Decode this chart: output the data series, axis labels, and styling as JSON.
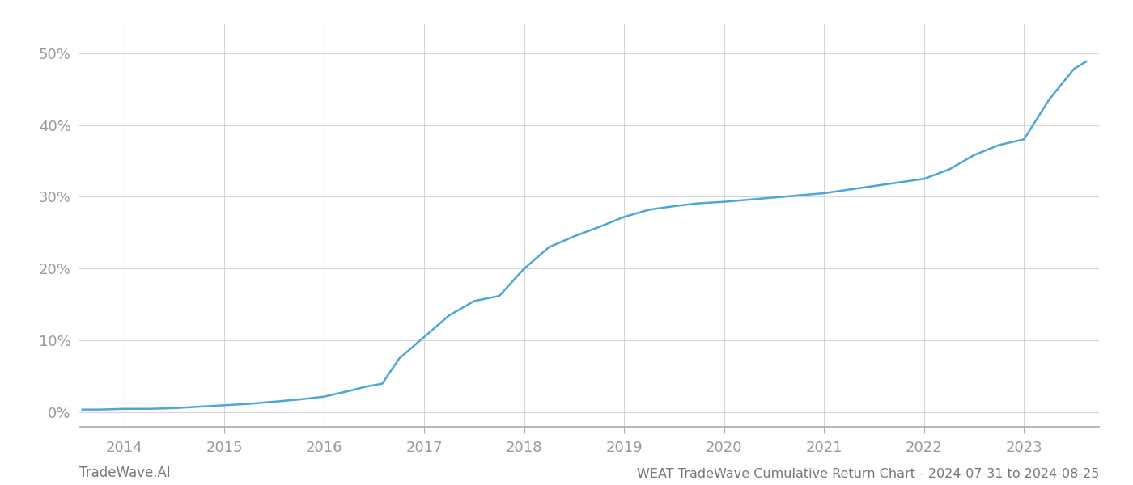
{
  "title": "WEAT TradeWave Cumulative Return Chart - 2024-07-31 to 2024-08-25",
  "watermark": "TradeWave.AI",
  "line_color": "#4da6d8",
  "background_color": "#ffffff",
  "grid_color": "#cccccc",
  "x_years": [
    2014,
    2015,
    2016,
    2017,
    2018,
    2019,
    2020,
    2021,
    2022,
    2023
  ],
  "y_ticks": [
    0,
    10,
    20,
    30,
    40,
    50
  ],
  "xlim": [
    2013.55,
    2023.75
  ],
  "ylim": [
    -2,
    54
  ],
  "data_x": [
    2013.58,
    2013.75,
    2014.0,
    2014.25,
    2014.5,
    2014.75,
    2015.0,
    2015.25,
    2015.5,
    2015.75,
    2016.0,
    2016.25,
    2016.42,
    2016.58,
    2016.75,
    2017.0,
    2017.25,
    2017.5,
    2017.75,
    2018.0,
    2018.25,
    2018.5,
    2018.75,
    2019.0,
    2019.25,
    2019.5,
    2019.75,
    2020.0,
    2020.25,
    2020.5,
    2020.75,
    2021.0,
    2021.25,
    2021.5,
    2021.75,
    2022.0,
    2022.25,
    2022.5,
    2022.75,
    2023.0,
    2023.25,
    2023.5,
    2023.62
  ],
  "data_y": [
    0.4,
    0.4,
    0.5,
    0.5,
    0.6,
    0.8,
    1.0,
    1.2,
    1.5,
    1.8,
    2.2,
    3.0,
    3.6,
    4.0,
    7.5,
    10.5,
    13.5,
    15.5,
    16.2,
    20.0,
    23.0,
    24.5,
    25.8,
    27.2,
    28.2,
    28.7,
    29.1,
    29.3,
    29.6,
    29.9,
    30.2,
    30.5,
    31.0,
    31.5,
    32.0,
    32.5,
    33.8,
    35.8,
    37.2,
    38.0,
    43.5,
    47.8,
    48.8
  ],
  "title_fontsize": 11.5,
  "tick_fontsize": 13,
  "watermark_fontsize": 12,
  "line_width": 1.8
}
